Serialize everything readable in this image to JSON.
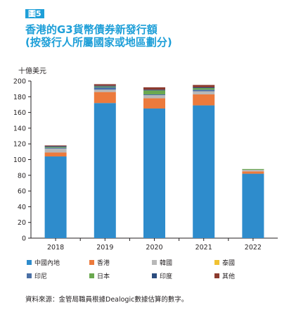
{
  "figure": {
    "badge": "圖5",
    "title_line1": "香港的G3貨幣債券新發行額",
    "title_line2": "(按發行人所屬國家或地區劃分)",
    "source": "資料來源：金管局職員根據Dealogic數據估算的數字。"
  },
  "chart_data": {
    "type": "bar",
    "stacked": true,
    "ylabel": "十億美元",
    "ylim": [
      0,
      200
    ],
    "yticks": [
      0,
      20,
      40,
      60,
      80,
      100,
      120,
      140,
      160,
      180,
      200
    ],
    "grid": false,
    "legend_position": "bottom",
    "categories": [
      "2018",
      "2019",
      "2020",
      "2021",
      "2022"
    ],
    "series": [
      {
        "name": "中國內地",
        "color": "#2e8ccc",
        "values": [
          104,
          172,
          165,
          169,
          82
        ]
      },
      {
        "name": "香港",
        "color": "#ec7a3c",
        "values": [
          5,
          14,
          13,
          14,
          3
        ]
      },
      {
        "name": "韓國",
        "color": "#b8b8b8",
        "values": [
          5,
          3,
          4,
          4,
          2
        ]
      },
      {
        "name": "泰國",
        "color": "#f1c232",
        "values": [
          0,
          0,
          0,
          0,
          0
        ]
      },
      {
        "name": "印尼",
        "color": "#4a6fa5",
        "values": [
          1,
          3,
          1,
          2,
          0
        ]
      },
      {
        "name": "日本",
        "color": "#6aa84f",
        "values": [
          1,
          1,
          5,
          2,
          1
        ]
      },
      {
        "name": "印度",
        "color": "#2b4c7e",
        "values": [
          1,
          1,
          1,
          1,
          0
        ]
      },
      {
        "name": "其他",
        "color": "#8b3a2e",
        "values": [
          1,
          2,
          3,
          3,
          0
        ]
      }
    ]
  }
}
